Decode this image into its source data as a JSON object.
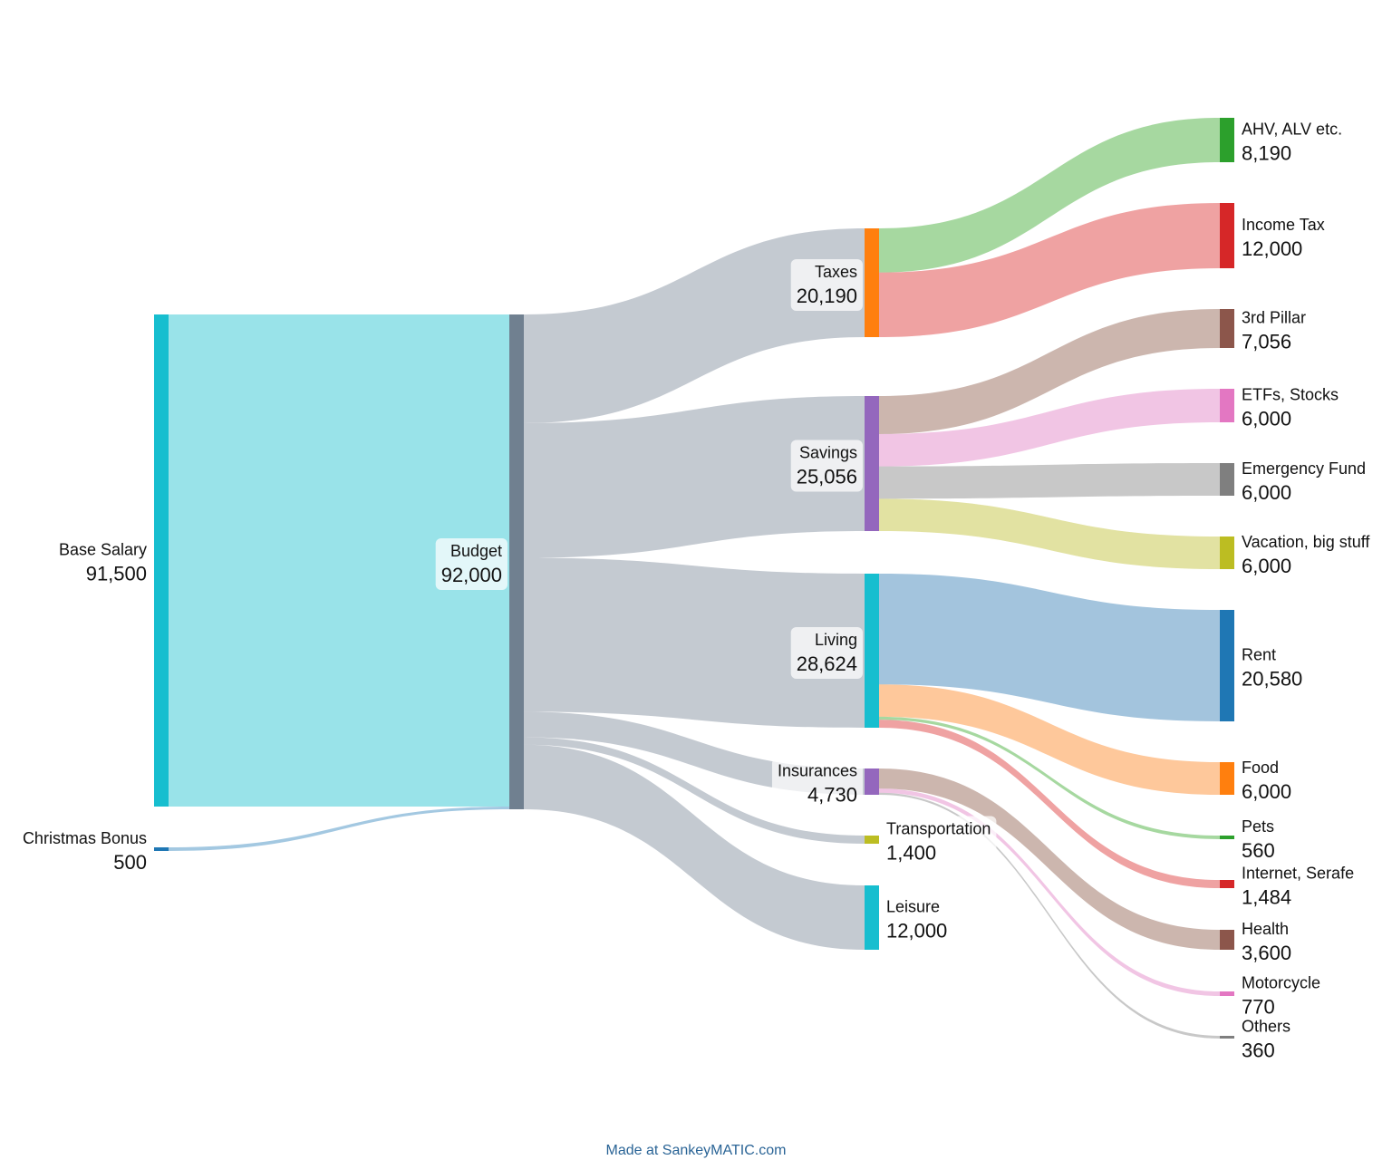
{
  "diagram": {
    "type": "sankey",
    "nodes": [
      {
        "id": "base_salary",
        "name": "Base Salary",
        "value": "91,500",
        "color": "#17becf"
      },
      {
        "id": "christmas_bonus",
        "name": "Christmas Bonus",
        "value": "500",
        "color": "#1f77b4"
      },
      {
        "id": "budget",
        "name": "Budget",
        "value": "92,000",
        "color": "#708090"
      },
      {
        "id": "taxes",
        "name": "Taxes",
        "value": "20,190",
        "color": "#ff7f0e"
      },
      {
        "id": "savings",
        "name": "Savings",
        "value": "25,056",
        "color": "#9467bd"
      },
      {
        "id": "living",
        "name": "Living",
        "value": "28,624",
        "color": "#17becf"
      },
      {
        "id": "insurances",
        "name": "Insurances",
        "value": "4,730",
        "color": "#9467bd"
      },
      {
        "id": "transportation",
        "name": "Transportation",
        "value": "1,400",
        "color": "#bcbd22"
      },
      {
        "id": "leisure",
        "name": "Leisure",
        "value": "12,000",
        "color": "#17becf"
      },
      {
        "id": "ahv",
        "name": "AHV, ALV etc.",
        "value": "8,190",
        "color": "#2ca02c"
      },
      {
        "id": "income_tax",
        "name": "Income Tax",
        "value": "12,000",
        "color": "#d62728"
      },
      {
        "id": "pillar3",
        "name": "3rd Pillar",
        "value": "7,056",
        "color": "#8c564b"
      },
      {
        "id": "etfs",
        "name": "ETFs, Stocks",
        "value": "6,000",
        "color": "#e377c2"
      },
      {
        "id": "emergency",
        "name": "Emergency Fund",
        "value": "6,000",
        "color": "#7f7f7f"
      },
      {
        "id": "vacation",
        "name": "Vacation, big stuff",
        "value": "6,000",
        "color": "#bcbd22"
      },
      {
        "id": "rent",
        "name": "Rent",
        "value": "20,580",
        "color": "#1f77b4"
      },
      {
        "id": "food",
        "name": "Food",
        "value": "6,000",
        "color": "#ff7f0e"
      },
      {
        "id": "pets",
        "name": "Pets",
        "value": "560",
        "color": "#2ca02c"
      },
      {
        "id": "internet",
        "name": "Internet, Serafe",
        "value": "1,484",
        "color": "#d62728"
      },
      {
        "id": "health",
        "name": "Health",
        "value": "3,600",
        "color": "#8c564b"
      },
      {
        "id": "motorcycle",
        "name": "Motorcycle",
        "value": "770",
        "color": "#e377c2"
      },
      {
        "id": "others",
        "name": "Others",
        "value": "360",
        "color": "#7f7f7f"
      }
    ],
    "links": [
      {
        "source": "base_salary",
        "target": "budget",
        "value": 91500,
        "color": "#94e2e8"
      },
      {
        "source": "christmas_bonus",
        "target": "budget",
        "value": 500,
        "color": "#9ec5e0"
      },
      {
        "source": "budget",
        "target": "taxes",
        "value": 20190,
        "color": "#c1c7cf"
      },
      {
        "source": "budget",
        "target": "savings",
        "value": 25056,
        "color": "#c1c7cf"
      },
      {
        "source": "budget",
        "target": "living",
        "value": 28624,
        "color": "#c1c7cf"
      },
      {
        "source": "budget",
        "target": "insurances",
        "value": 4730,
        "color": "#c1c7cf"
      },
      {
        "source": "budget",
        "target": "transportation",
        "value": 1400,
        "color": "#c1c7cf"
      },
      {
        "source": "budget",
        "target": "leisure",
        "value": 12000,
        "color": "#c1c7cf"
      },
      {
        "source": "taxes",
        "target": "ahv",
        "value": 8190,
        "color": "#a1d69b"
      },
      {
        "source": "taxes",
        "target": "income_tax",
        "value": 12000,
        "color": "#ef9d9d"
      },
      {
        "source": "savings",
        "target": "pillar3",
        "value": 7056,
        "color": "#c9b2aa"
      },
      {
        "source": "savings",
        "target": "etfs",
        "value": 6000,
        "color": "#f1c2e3"
      },
      {
        "source": "savings",
        "target": "emergency",
        "value": 6000,
        "color": "#c5c5c5"
      },
      {
        "source": "savings",
        "target": "vacation",
        "value": 6000,
        "color": "#e1e19d"
      },
      {
        "source": "living",
        "target": "rent",
        "value": 20580,
        "color": "#9ec1dc"
      },
      {
        "source": "living",
        "target": "food",
        "value": 6000,
        "color": "#fec596"
      },
      {
        "source": "living",
        "target": "pets",
        "value": 560,
        "color": "#a1d69b"
      },
      {
        "source": "living",
        "target": "internet",
        "value": 1484,
        "color": "#ef9d9d"
      },
      {
        "source": "insurances",
        "target": "health",
        "value": 3600,
        "color": "#c9b2aa"
      },
      {
        "source": "insurances",
        "target": "motorcycle",
        "value": 770,
        "color": "#f1c2e3"
      },
      {
        "source": "insurances",
        "target": "others",
        "value": 360,
        "color": "#c5c5c5"
      }
    ]
  },
  "footer": {
    "credit": "Made at SankeyMATIC.com"
  }
}
